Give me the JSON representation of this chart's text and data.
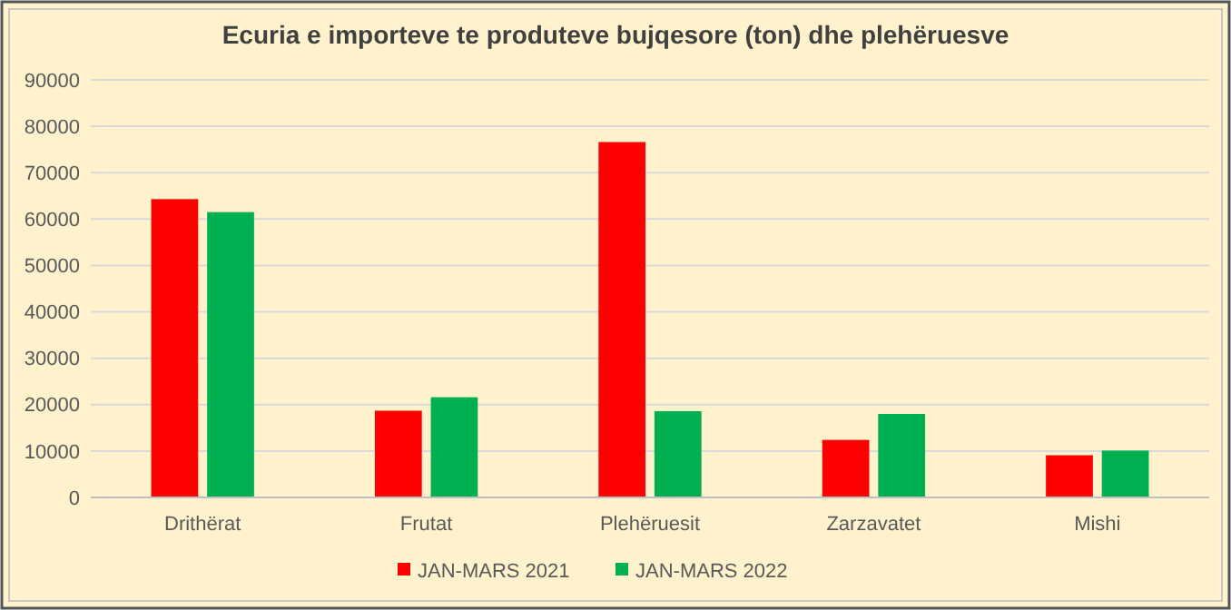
{
  "chart_data": {
    "type": "bar",
    "title": "Ecuria e importeve te produteve bujqesore (ton) dhe plehëruesve",
    "categories": [
      "Drithërat",
      "Frutat",
      "Plehëruesit",
      "Zarzavatet",
      "Mishi"
    ],
    "series": [
      {
        "name": "JAN-MARS 2021",
        "color": "#ff0000",
        "values": [
          64300,
          18700,
          76600,
          12400,
          9100
        ]
      },
      {
        "name": "JAN-MARS 2022",
        "color": "#00b050",
        "values": [
          61500,
          21600,
          18600,
          18000,
          10100
        ]
      }
    ],
    "ylim": [
      0,
      90000
    ],
    "yticks": [
      0,
      10000,
      20000,
      30000,
      40000,
      50000,
      60000,
      70000,
      80000,
      90000
    ],
    "grid": "y",
    "legend": "bottom"
  }
}
